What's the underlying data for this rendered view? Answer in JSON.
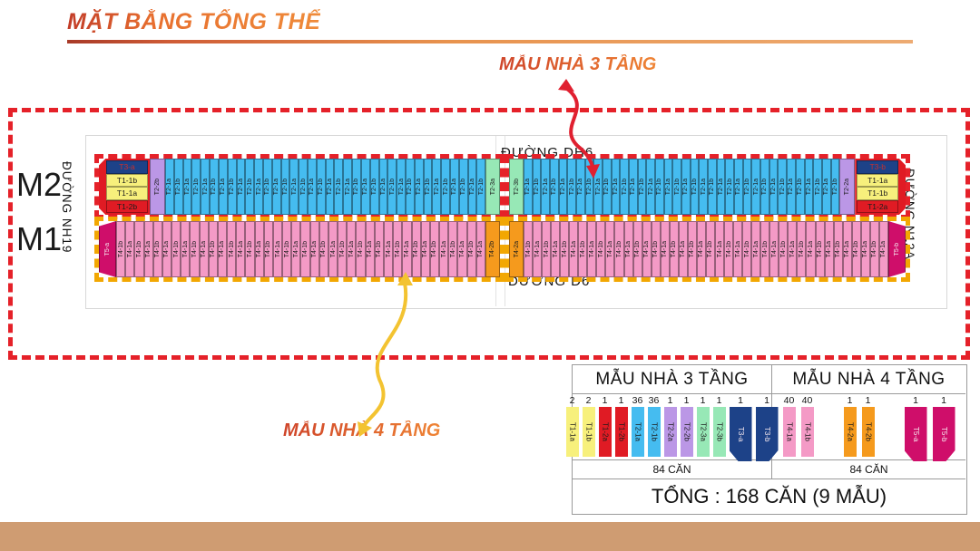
{
  "header": {
    "title": "MẶT BẰNG TỔNG THỂ"
  },
  "annotations": {
    "label_3_floor": "MẪU NHÀ 3 TẦNG",
    "label_4_floor": "MẪU NHÀ 4 TẦNG"
  },
  "streets": {
    "top": "ĐƯỜNG DH6",
    "bottom": "ĐƯỜNG D6",
    "left": "ĐƯỜNG NH19",
    "right": "ĐƯỜNG N12A"
  },
  "row_labels": {
    "m2": "M2",
    "m1": "M1"
  },
  "colors": {
    "outline_3_floor": "#e52129",
    "outline_4_floor": "#f2a702",
    "bottom_band": "#cf9c72"
  },
  "plan": {
    "m2": {
      "left_end_stack": [
        "T3-a",
        "T1-1b",
        "T1-1a",
        "T1-2b"
      ],
      "right_end_stack": [
        "T3-b",
        "T1-1a",
        "T1-1b",
        "T1-2a"
      ],
      "left_cap": "T2-2b",
      "right_cap": "T2-2a",
      "left_green": "T2-3a",
      "right_green": "T2-3b",
      "strip_types": [
        "T2-1a",
        "T2-1b"
      ],
      "strip_count_per_half": 36
    },
    "m1": {
      "left_end": "T5-a",
      "right_end": "T5-b",
      "left_mid": "T4-2b",
      "right_mid": "T4-2a",
      "strip_types": [
        "T4-1b",
        "T4-1a"
      ],
      "strip_count_per_half": 40
    }
  },
  "legend": {
    "sections": [
      {
        "title": "MẪU NHÀ 3 TẦNG",
        "total": "84 CĂN",
        "items": [
          {
            "label": "T1-1a",
            "count": "2",
            "color": "#f7f07c"
          },
          {
            "label": "T1-1b",
            "count": "2",
            "color": "#f7f07c"
          },
          {
            "label": "T1-2a",
            "count": "1",
            "color": "#e01b24"
          },
          {
            "label": "T1-2b",
            "count": "1",
            "color": "#e01b24"
          },
          {
            "label": "T2-1a",
            "count": "36",
            "color": "#45bcf0"
          },
          {
            "label": "T2-1b",
            "count": "36",
            "color": "#45bcf0"
          },
          {
            "label": "T2-2a",
            "count": "1",
            "color": "#bb97e6"
          },
          {
            "label": "T2-2b",
            "count": "1",
            "color": "#bb97e6"
          },
          {
            "label": "T2-3a",
            "count": "1",
            "color": "#97e8b6"
          },
          {
            "label": "T2-3b",
            "count": "1",
            "color": "#97e8b6"
          },
          {
            "label": "T3-a",
            "count": "1",
            "color": "#1d4288",
            "shape": "house-a",
            "wide": true
          },
          {
            "label": "T3-b",
            "count": "1",
            "color": "#1d4288",
            "shape": "house-b",
            "wide": true
          }
        ]
      },
      {
        "title": "MẪU NHÀ 4 TẦNG",
        "total": "84 CĂN",
        "items": [
          {
            "label": "T4-1a",
            "count": "40",
            "color": "#f49ac6"
          },
          {
            "label": "T4-1b",
            "count": "40",
            "color": "#f49ac6"
          },
          {
            "label": "T4-2a",
            "count": "1",
            "color": "#f59a1d"
          },
          {
            "label": "T4-2b",
            "count": "1",
            "color": "#f59a1d"
          },
          {
            "label": "T5-a",
            "count": "1",
            "color": "#cf0e6a",
            "shape": "house-a",
            "wide": true
          },
          {
            "label": "T5-b",
            "count": "1",
            "color": "#cf0e6a",
            "shape": "house-b",
            "wide": true
          }
        ]
      }
    ],
    "grand_total": "TỔNG : 168 CĂN (9 MẪU)"
  }
}
